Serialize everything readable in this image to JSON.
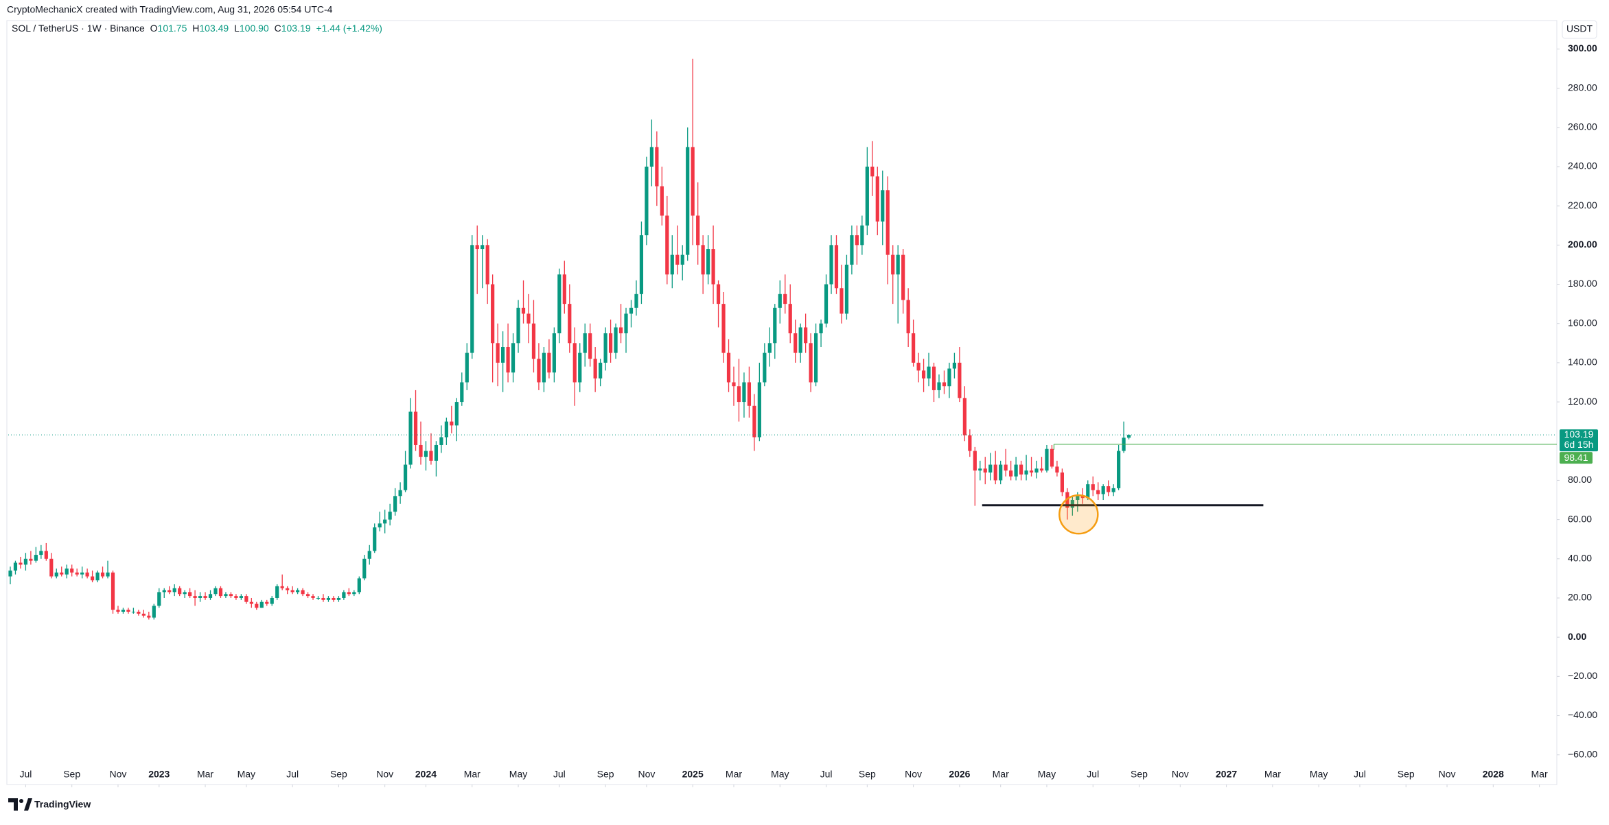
{
  "header": {
    "credit": "CryptoMechanicX created with TradingView.com, Aug 31, 2026 05:54 UTC-4",
    "symbol": "SOL / TetherUS · 1W · Binance",
    "ohlc": [
      {
        "key": "O",
        "value": "101.75"
      },
      {
        "key": "H",
        "value": "103.49"
      },
      {
        "key": "L",
        "value": "100.90"
      },
      {
        "key": "C",
        "value": "103.19"
      }
    ],
    "change": "+1.44 (+1.42%)",
    "currency": "USDT",
    "countdown": "6d 15h",
    "logo": "TradingView"
  },
  "chart_data": {
    "type": "candlestick",
    "up_color": "#089981",
    "down_color": "#f23645",
    "grid": false,
    "xlim": [
      -0.4,
      301.4
    ],
    "ylim": [
      -65,
      304
    ],
    "xticks": [
      {
        "value": 3,
        "label": "Jul"
      },
      {
        "value": 12,
        "label": "Sep"
      },
      {
        "value": 21,
        "label": "Nov"
      },
      {
        "value": 29,
        "label": "2023"
      },
      {
        "value": 38,
        "label": "Mar"
      },
      {
        "value": 46,
        "label": "May"
      },
      {
        "value": 55,
        "label": "Jul"
      },
      {
        "value": 64,
        "label": "Sep"
      },
      {
        "value": 73,
        "label": "Nov"
      },
      {
        "value": 81,
        "label": "2024"
      },
      {
        "value": 90,
        "label": "Mar"
      },
      {
        "value": 99,
        "label": "May"
      },
      {
        "value": 107,
        "label": "Jul"
      },
      {
        "value": 116,
        "label": "Sep"
      },
      {
        "value": 124,
        "label": "Nov"
      },
      {
        "value": 133,
        "label": "2025"
      },
      {
        "value": 141,
        "label": "Mar"
      },
      {
        "value": 150,
        "label": "May"
      },
      {
        "value": 159,
        "label": "Jul"
      },
      {
        "value": 167,
        "label": "Sep"
      },
      {
        "value": 176,
        "label": "Nov"
      },
      {
        "value": 185,
        "label": "2026"
      },
      {
        "value": 193,
        "label": "Mar"
      },
      {
        "value": 202,
        "label": "May"
      },
      {
        "value": 211,
        "label": "Jul"
      },
      {
        "value": 220,
        "label": "Sep"
      },
      {
        "value": 228,
        "label": "Nov"
      },
      {
        "value": 237,
        "label": "2027"
      },
      {
        "value": 246,
        "label": "Mar"
      },
      {
        "value": 255,
        "label": "May"
      },
      {
        "value": 263,
        "label": "Jul"
      },
      {
        "value": 272,
        "label": "Sep"
      },
      {
        "value": 280,
        "label": "Nov"
      },
      {
        "value": 289,
        "label": "2028"
      },
      {
        "value": 298,
        "label": "Mar"
      }
    ],
    "yticks": [
      {
        "value": 300,
        "label": "300.00"
      },
      {
        "value": 280,
        "label": "280.00"
      },
      {
        "value": 260,
        "label": "260.00"
      },
      {
        "value": 240,
        "label": "240.00"
      },
      {
        "value": 220,
        "label": "220.00"
      },
      {
        "value": 200,
        "label": "200.00"
      },
      {
        "value": 180,
        "label": "180.00"
      },
      {
        "value": 160,
        "label": "160.00"
      },
      {
        "value": 140,
        "label": "140.00"
      },
      {
        "value": 120,
        "label": "120.00"
      },
      {
        "value": 80,
        "label": "80.00"
      },
      {
        "value": 60,
        "label": "60.00"
      },
      {
        "value": 40,
        "label": "40.00"
      },
      {
        "value": 20,
        "label": "20.00"
      },
      {
        "value": 0,
        "label": "0.00"
      },
      {
        "value": -20,
        "label": "−20.00"
      },
      {
        "value": -40,
        "label": "−40.00"
      },
      {
        "value": -60,
        "label": "−60.00"
      }
    ],
    "candles": [
      [
        31,
        36,
        27,
        34
      ],
      [
        34,
        39,
        32,
        38
      ],
      [
        38,
        41,
        35,
        37
      ],
      [
        37,
        43,
        34,
        40
      ],
      [
        40,
        44,
        37,
        39
      ],
      [
        39,
        46,
        38,
        42
      ],
      [
        42,
        47,
        40,
        44
      ],
      [
        44,
        48,
        39,
        40
      ],
      [
        40,
        43,
        30,
        31
      ],
      [
        31,
        35,
        30,
        33
      ],
      [
        33,
        36,
        31,
        32
      ],
      [
        32,
        37,
        30,
        35
      ],
      [
        35,
        37,
        31,
        33
      ],
      [
        33,
        35,
        31,
        32
      ],
      [
        32,
        36,
        30,
        33
      ],
      [
        33,
        35,
        30,
        31
      ],
      [
        31,
        34,
        28,
        29
      ],
      [
        29,
        34,
        28,
        33
      ],
      [
        33,
        36,
        30,
        31
      ],
      [
        31,
        39,
        30,
        33
      ],
      [
        33,
        34,
        12,
        14
      ],
      [
        14,
        16,
        12,
        13
      ],
      [
        13,
        15,
        12,
        14
      ],
      [
        14,
        15,
        12,
        13
      ],
      [
        13,
        15,
        12,
        13
      ],
      [
        13,
        14,
        11,
        12
      ],
      [
        12,
        14,
        10,
        11
      ],
      [
        11,
        13,
        9,
        10
      ],
      [
        10,
        17,
        9,
        16
      ],
      [
        16,
        25,
        15,
        23
      ],
      [
        23,
        25,
        20,
        24
      ],
      [
        24,
        26,
        22,
        23
      ],
      [
        23,
        27,
        21,
        25
      ],
      [
        25,
        26,
        21,
        22
      ],
      [
        22,
        24,
        20,
        23
      ],
      [
        23,
        25,
        20,
        21
      ],
      [
        21,
        24,
        16,
        20
      ],
      [
        20,
        23,
        18,
        21
      ],
      [
        21,
        23,
        19,
        20
      ],
      [
        20,
        24,
        19,
        22
      ],
      [
        22,
        26,
        21,
        25
      ],
      [
        25,
        26,
        20,
        21
      ],
      [
        21,
        23,
        20,
        22
      ],
      [
        22,
        23,
        20,
        21
      ],
      [
        21,
        22,
        19,
        20
      ],
      [
        20,
        22,
        19,
        21
      ],
      [
        21,
        22,
        17,
        18
      ],
      [
        18,
        20,
        15,
        17
      ],
      [
        17,
        18,
        14,
        15
      ],
      [
        15,
        19,
        15,
        18
      ],
      [
        18,
        19,
        16,
        17
      ],
      [
        17,
        21,
        16,
        20
      ],
      [
        20,
        27,
        19,
        26
      ],
      [
        26,
        32,
        24,
        25
      ],
      [
        25,
        26,
        22,
        24
      ],
      [
        24,
        26,
        22,
        23
      ],
      [
        23,
        25,
        22,
        24
      ],
      [
        24,
        25,
        21,
        22
      ],
      [
        22,
        23,
        20,
        21
      ],
      [
        21,
        22,
        19,
        20
      ],
      [
        20,
        21,
        19,
        20
      ],
      [
        20,
        22,
        18,
        19
      ],
      [
        19,
        21,
        18,
        20
      ],
      [
        20,
        21,
        18,
        19
      ],
      [
        19,
        21,
        18,
        20
      ],
      [
        20,
        24,
        19,
        23
      ],
      [
        23,
        25,
        21,
        22
      ],
      [
        22,
        24,
        21,
        23
      ],
      [
        23,
        31,
        22,
        30
      ],
      [
        30,
        42,
        29,
        40
      ],
      [
        40,
        47,
        37,
        44
      ],
      [
        44,
        58,
        43,
        56
      ],
      [
        56,
        64,
        54,
        58
      ],
      [
        58,
        65,
        53,
        60
      ],
      [
        60,
        68,
        57,
        64
      ],
      [
        64,
        76,
        62,
        72
      ],
      [
        72,
        79,
        68,
        75
      ],
      [
        75,
        95,
        74,
        88
      ],
      [
        88,
        122,
        86,
        115
      ],
      [
        115,
        126,
        95,
        98
      ],
      [
        98,
        110,
        88,
        92
      ],
      [
        92,
        100,
        85,
        95
      ],
      [
        95,
        104,
        88,
        90
      ],
      [
        90,
        100,
        82,
        98
      ],
      [
        98,
        108,
        94,
        102
      ],
      [
        102,
        112,
        98,
        110
      ],
      [
        110,
        118,
        104,
        108
      ],
      [
        108,
        122,
        100,
        120
      ],
      [
        120,
        135,
        118,
        130
      ],
      [
        130,
        150,
        126,
        145
      ],
      [
        145,
        205,
        142,
        200
      ],
      [
        200,
        210,
        175,
        198
      ],
      [
        198,
        205,
        178,
        200
      ],
      [
        200,
        203,
        170,
        180
      ],
      [
        180,
        185,
        130,
        150
      ],
      [
        150,
        160,
        128,
        140
      ],
      [
        140,
        156,
        125,
        148
      ],
      [
        148,
        160,
        130,
        135
      ],
      [
        135,
        155,
        130,
        150
      ],
      [
        150,
        172,
        145,
        168
      ],
      [
        168,
        182,
        160,
        165
      ],
      [
        165,
        175,
        150,
        160
      ],
      [
        160,
        172,
        135,
        142
      ],
      [
        142,
        150,
        126,
        130
      ],
      [
        130,
        148,
        125,
        145
      ],
      [
        145,
        152,
        132,
        135
      ],
      [
        135,
        158,
        130,
        155
      ],
      [
        155,
        188,
        150,
        185
      ],
      [
        185,
        192,
        165,
        170
      ],
      [
        170,
        180,
        145,
        150
      ],
      [
        150,
        158,
        118,
        130
      ],
      [
        130,
        150,
        125,
        145
      ],
      [
        145,
        160,
        138,
        155
      ],
      [
        155,
        160,
        138,
        142
      ],
      [
        142,
        148,
        125,
        132
      ],
      [
        132,
        142,
        128,
        140
      ],
      [
        140,
        158,
        136,
        155
      ],
      [
        155,
        162,
        140,
        145
      ],
      [
        145,
        160,
        142,
        158
      ],
      [
        158,
        170,
        150,
        155
      ],
      [
        155,
        168,
        145,
        165
      ],
      [
        165,
        172,
        158,
        168
      ],
      [
        168,
        182,
        164,
        175
      ],
      [
        175,
        212,
        170,
        205
      ],
      [
        205,
        245,
        200,
        240
      ],
      [
        240,
        264,
        230,
        250
      ],
      [
        250,
        258,
        220,
        230
      ],
      [
        230,
        240,
        210,
        215
      ],
      [
        215,
        225,
        180,
        185
      ],
      [
        185,
        205,
        178,
        195
      ],
      [
        195,
        210,
        185,
        190
      ],
      [
        190,
        200,
        182,
        195
      ],
      [
        195,
        260,
        192,
        250
      ],
      [
        250,
        295,
        200,
        215
      ],
      [
        215,
        232,
        190,
        200
      ],
      [
        200,
        205,
        175,
        185
      ],
      [
        185,
        205,
        180,
        198
      ],
      [
        198,
        210,
        170,
        180
      ],
      [
        180,
        182,
        158,
        170
      ],
      [
        170,
        176,
        140,
        145
      ],
      [
        145,
        152,
        125,
        130
      ],
      [
        130,
        138,
        118,
        128
      ],
      [
        128,
        142,
        110,
        120
      ],
      [
        120,
        135,
        112,
        130
      ],
      [
        130,
        138,
        112,
        118
      ],
      [
        118,
        124,
        95,
        102
      ],
      [
        102,
        140,
        100,
        130
      ],
      [
        130,
        150,
        128,
        145
      ],
      [
        145,
        158,
        138,
        150
      ],
      [
        150,
        170,
        142,
        168
      ],
      [
        168,
        182,
        160,
        175
      ],
      [
        175,
        185,
        165,
        170
      ],
      [
        170,
        180,
        150,
        155
      ],
      [
        155,
        162,
        140,
        145
      ],
      [
        145,
        160,
        140,
        158
      ],
      [
        158,
        165,
        145,
        150
      ],
      [
        150,
        155,
        125,
        130
      ],
      [
        130,
        160,
        128,
        155
      ],
      [
        155,
        162,
        148,
        160
      ],
      [
        160,
        185,
        158,
        180
      ],
      [
        180,
        205,
        175,
        200
      ],
      [
        200,
        205,
        175,
        178
      ],
      [
        178,
        190,
        160,
        165
      ],
      [
        165,
        195,
        162,
        190
      ],
      [
        190,
        210,
        185,
        205
      ],
      [
        205,
        210,
        190,
        200
      ],
      [
        200,
        215,
        195,
        210
      ],
      [
        210,
        250,
        205,
        240
      ],
      [
        240,
        253,
        225,
        235
      ],
      [
        235,
        240,
        205,
        212
      ],
      [
        212,
        238,
        200,
        228
      ],
      [
        228,
        235,
        180,
        195
      ],
      [
        195,
        200,
        170,
        185
      ],
      [
        185,
        200,
        160,
        195
      ],
      [
        195,
        198,
        165,
        172
      ],
      [
        172,
        178,
        148,
        155
      ],
      [
        155,
        162,
        138,
        140
      ],
      [
        140,
        145,
        130,
        136
      ],
      [
        136,
        142,
        125,
        132
      ],
      [
        132,
        145,
        128,
        138
      ],
      [
        138,
        140,
        120,
        126
      ],
      [
        126,
        134,
        122,
        130
      ],
      [
        130,
        136,
        124,
        128
      ],
      [
        128,
        140,
        122,
        137
      ],
      [
        137,
        145,
        132,
        140
      ],
      [
        140,
        148,
        120,
        122
      ],
      [
        122,
        128,
        100,
        103
      ],
      [
        103,
        106,
        92,
        95
      ],
      [
        95,
        97,
        67,
        85
      ],
      [
        85,
        90,
        80,
        86
      ],
      [
        86,
        92,
        78,
        84
      ],
      [
        84,
        94,
        80,
        88
      ],
      [
        88,
        95,
        78,
        80
      ],
      [
        80,
        90,
        78,
        88
      ],
      [
        88,
        96,
        82,
        85
      ],
      [
        85,
        90,
        80,
        82
      ],
      [
        82,
        92,
        80,
        88
      ],
      [
        88,
        90,
        80,
        83
      ],
      [
        83,
        93,
        80,
        85
      ],
      [
        85,
        92,
        82,
        84
      ],
      [
        84,
        90,
        81,
        86
      ],
      [
        86,
        92,
        84,
        85
      ],
      [
        85,
        98,
        84,
        96
      ],
      [
        96,
        98,
        86,
        87
      ],
      [
        87,
        90,
        82,
        84
      ],
      [
        84,
        86,
        72,
        74
      ],
      [
        74,
        76,
        60,
        66
      ],
      [
        66,
        72,
        62,
        70
      ],
      [
        70,
        74,
        64,
        72
      ],
      [
        72,
        76,
        68,
        71
      ],
      [
        71,
        80,
        70,
        78
      ],
      [
        78,
        82,
        72,
        75
      ],
      [
        75,
        79,
        70,
        73
      ],
      [
        73,
        78,
        70,
        77
      ],
      [
        77,
        80,
        72,
        74
      ],
      [
        74,
        78,
        72,
        76
      ],
      [
        76,
        98,
        75,
        95
      ],
      [
        95,
        110,
        94,
        101.75
      ],
      [
        101.75,
        103.49,
        100.9,
        103.19
      ]
    ],
    "drawings": {
      "support": {
        "value": 67.3,
        "x": [
          189.4,
          244.2
        ]
      },
      "highlight": {
        "value": 62.6,
        "x": 208.2
      },
      "level": {
        "value": 98.41,
        "x": 203.4
      }
    }
  }
}
